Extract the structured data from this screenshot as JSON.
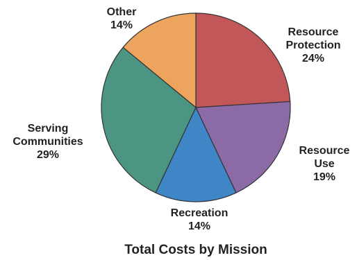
{
  "chart_data": {
    "type": "pie",
    "title": "Total Costs by Mission",
    "slices": [
      {
        "label_lines": [
          "Resource",
          "Protection"
        ],
        "value": 24,
        "value_text": "24%",
        "color": "#c2575a"
      },
      {
        "label_lines": [
          "Resource",
          "Use"
        ],
        "value": 19,
        "value_text": "19%",
        "color": "#8c6aa6"
      },
      {
        "label_lines": [
          "Recreation"
        ],
        "value": 14,
        "value_text": "14%",
        "color": "#3f86c6"
      },
      {
        "label_lines": [
          "Serving",
          "Communities"
        ],
        "value": 29,
        "value_text": "29%",
        "color": "#4c9582"
      },
      {
        "label_lines": [
          "Other"
        ],
        "value": 14,
        "value_text": "14%",
        "color": "#eda45e"
      }
    ],
    "start_angle_deg": 0,
    "direction": "clockwise",
    "legend": "none"
  }
}
